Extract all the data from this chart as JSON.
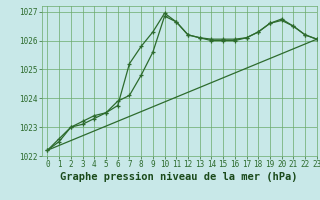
{
  "title": "Graphe pression niveau de la mer (hPa)",
  "bg_color": "#c8e8e8",
  "grid_color": "#6aaa6a",
  "line_color": "#2d6b2d",
  "xlim": [
    -0.5,
    23
  ],
  "ylim": [
    1022,
    1027.2
  ],
  "yticks": [
    1022,
    1023,
    1024,
    1025,
    1026,
    1027
  ],
  "xticks": [
    0,
    1,
    2,
    3,
    4,
    5,
    6,
    7,
    8,
    9,
    10,
    11,
    12,
    13,
    14,
    15,
    16,
    17,
    18,
    19,
    20,
    21,
    22,
    23
  ],
  "series1_x": [
    0,
    1,
    2,
    3,
    4,
    5,
    6,
    7,
    8,
    9,
    10,
    11,
    12,
    13,
    14,
    15,
    16,
    17,
    18,
    19,
    20,
    21,
    22,
    23
  ],
  "series1_y": [
    1022.2,
    1022.6,
    1023.0,
    1023.1,
    1023.3,
    1023.5,
    1023.75,
    1025.2,
    1025.8,
    1026.3,
    1026.95,
    1026.65,
    1026.2,
    1026.1,
    1026.05,
    1026.05,
    1026.05,
    1026.1,
    1026.3,
    1026.6,
    1026.7,
    1026.5,
    1026.2,
    1026.05
  ],
  "series2_x": [
    0,
    1,
    2,
    3,
    4,
    5,
    6,
    7,
    8,
    9,
    10,
    11,
    12,
    13,
    14,
    15,
    16,
    17,
    18,
    19,
    20,
    21,
    22,
    23
  ],
  "series2_y": [
    1022.2,
    1022.5,
    1023.0,
    1023.2,
    1023.4,
    1023.5,
    1023.9,
    1024.1,
    1024.8,
    1025.6,
    1026.85,
    1026.65,
    1026.2,
    1026.1,
    1026.0,
    1026.0,
    1026.0,
    1026.1,
    1026.3,
    1026.6,
    1026.75,
    1026.5,
    1026.2,
    1026.05
  ],
  "series3_x": [
    0,
    23
  ],
  "series3_y": [
    1022.2,
    1026.05
  ],
  "title_color": "#1a4a1a",
  "title_fontsize": 7.5,
  "tick_fontsize": 5.5
}
